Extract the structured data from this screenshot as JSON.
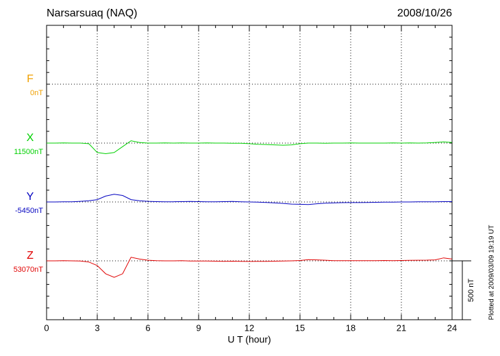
{
  "chart_data": {
    "type": "line",
    "title": "Narsarsuaq (NAQ)",
    "date": "2008/10/26",
    "xlabel": "U T (hour)",
    "footnote": "Plotted at 2009/03/09 19:19 UT",
    "xlim": [
      0,
      24
    ],
    "xticks": [
      0,
      3,
      6,
      9,
      12,
      15,
      18,
      21,
      24
    ],
    "scale": {
      "value": 500,
      "label": "500 nT"
    },
    "grid": true,
    "x": [
      0,
      0.5,
      1,
      1.5,
      2,
      2.5,
      3,
      3.5,
      4,
      4.5,
      5,
      5.5,
      6,
      6.5,
      7,
      7.5,
      8,
      8.5,
      9,
      9.5,
      10,
      10.5,
      11,
      11.5,
      12,
      12.5,
      13,
      13.5,
      14,
      14.5,
      15,
      15.5,
      16,
      16.5,
      17,
      17.5,
      18,
      18.5,
      19,
      19.5,
      20,
      20.5,
      21,
      21.5,
      22,
      22.5,
      23,
      23.5,
      24
    ],
    "series": [
      {
        "name": "F",
        "color": "#f0a000",
        "baseline": {
          "value": 0,
          "label": "0nT"
        }
      },
      {
        "name": "X",
        "color": "#00d000",
        "baseline": {
          "value": 11500,
          "label": "11500nT"
        },
        "values": [
          11500,
          11500,
          11501,
          11500,
          11500,
          11495,
          11420,
          11410,
          11420,
          11470,
          11520,
          11505,
          11500,
          11500,
          11501,
          11500,
          11502,
          11500,
          11500,
          11501,
          11500,
          11500,
          11499,
          11498,
          11495,
          11490,
          11488,
          11485,
          11482,
          11485,
          11495,
          11500,
          11500,
          11499,
          11500,
          11500,
          11501,
          11500,
          11500,
          11500,
          11500,
          11501,
          11500,
          11502,
          11500,
          11501,
          11505,
          11510,
          11505
        ]
      },
      {
        "name": "Y",
        "color": "#0000c0",
        "baseline": {
          "value": -5450,
          "label": "-5450nT"
        },
        "values": [
          -5450,
          -5450,
          -5449,
          -5448,
          -5445,
          -5440,
          -5430,
          -5400,
          -5385,
          -5395,
          -5430,
          -5440,
          -5445,
          -5447,
          -5448,
          -5448,
          -5447,
          -5446,
          -5447,
          -5448,
          -5448,
          -5447,
          -5446,
          -5448,
          -5450,
          -5452,
          -5454,
          -5458,
          -5462,
          -5468,
          -5470,
          -5472,
          -5465,
          -5460,
          -5458,
          -5456,
          -5455,
          -5455,
          -5454,
          -5453,
          -5452,
          -5451,
          -5450,
          -5450,
          -5449,
          -5448,
          -5448,
          -5447,
          -5447
        ]
      },
      {
        "name": "Z",
        "color": "#e00000",
        "baseline": {
          "value": 53070,
          "label": "53070nT"
        },
        "values": [
          53070,
          53070,
          53071,
          53070,
          53068,
          53060,
          53030,
          52960,
          52930,
          52960,
          53100,
          53085,
          53075,
          53072,
          53070,
          53070,
          53071,
          53069,
          53068,
          53068,
          53067,
          53066,
          53067,
          53066,
          53065,
          53066,
          53066,
          53067,
          53068,
          53070,
          53073,
          53080,
          53078,
          53075,
          53072,
          53071,
          53072,
          53072,
          53071,
          53072,
          53073,
          53072,
          53073,
          53074,
          53075,
          53076,
          53078,
          53095,
          53085
        ]
      }
    ]
  }
}
